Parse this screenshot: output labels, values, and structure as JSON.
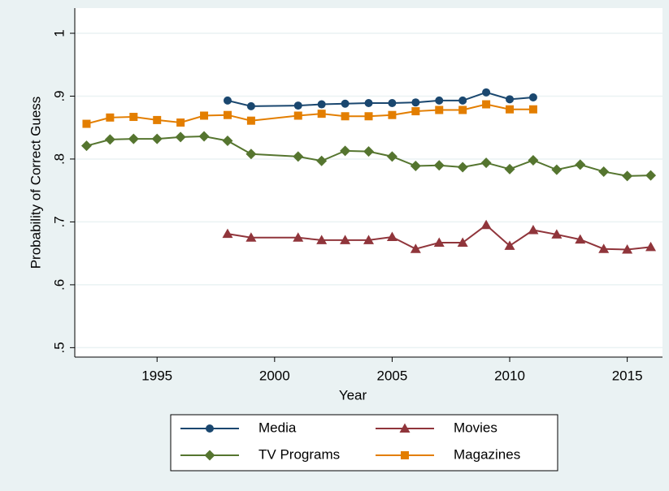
{
  "chart_data": {
    "type": "line",
    "x_label": "Year",
    "y_label": "Probability of Correct Guess",
    "xlim": [
      1991.5,
      2016.5
    ],
    "xticks": [
      1995,
      2000,
      2005,
      2010,
      2015
    ],
    "ylim": [
      0.485,
      1.04
    ],
    "yticks": [
      {
        "value": 0.5,
        "label": ".5"
      },
      {
        "value": 0.6,
        "label": ".6"
      },
      {
        "value": 0.7,
        "label": ".7"
      },
      {
        "value": 0.8,
        "label": ".8"
      },
      {
        "value": 0.9,
        "label": ".9"
      },
      1
    ],
    "grid": true,
    "legend": "bottom",
    "series": [
      {
        "name": "Media",
        "color": "#1a476f",
        "marker": "circle",
        "x": [
          1998,
          1999,
          2001,
          2002,
          2003,
          2004,
          2005,
          2006,
          2007,
          2008,
          2009,
          2010,
          2011
        ],
        "values": [
          0.893,
          0.884,
          0.885,
          0.887,
          0.888,
          0.889,
          0.889,
          0.89,
          0.893,
          0.893,
          0.906,
          0.895,
          0.898
        ]
      },
      {
        "name": "Movies",
        "color": "#90353b",
        "marker": "triangle",
        "x": [
          1998,
          1999,
          2001,
          2002,
          2003,
          2004,
          2005,
          2006,
          2007,
          2008,
          2009,
          2010,
          2011,
          2012,
          2013,
          2014,
          2015,
          2016
        ],
        "values": [
          0.681,
          0.675,
          0.675,
          0.671,
          0.671,
          0.671,
          0.676,
          0.657,
          0.667,
          0.667,
          0.695,
          0.662,
          0.687,
          0.68,
          0.672,
          0.657,
          0.656,
          0.66
        ]
      },
      {
        "name": "TV Programs",
        "color": "#55752f",
        "marker": "diamond",
        "x": [
          1992,
          1993,
          1994,
          1995,
          1996,
          1997,
          1998,
          1999,
          2001,
          2002,
          2003,
          2004,
          2005,
          2006,
          2007,
          2008,
          2009,
          2010,
          2011,
          2012,
          2013,
          2014,
          2015,
          2016
        ],
        "values": [
          0.821,
          0.831,
          0.832,
          0.832,
          0.835,
          0.836,
          0.829,
          0.808,
          0.804,
          0.797,
          0.813,
          0.812,
          0.804,
          0.789,
          0.79,
          0.787,
          0.794,
          0.784,
          0.798,
          0.783,
          0.791,
          0.78,
          0.773,
          0.774
        ]
      },
      {
        "name": "Magazines",
        "color": "#e37e00",
        "marker": "square",
        "x": [
          1992,
          1993,
          1994,
          1995,
          1996,
          1997,
          1998,
          1999,
          2001,
          2002,
          2003,
          2004,
          2005,
          2006,
          2007,
          2008,
          2009,
          2010,
          2011
        ],
        "values": [
          0.856,
          0.866,
          0.867,
          0.862,
          0.858,
          0.869,
          0.87,
          0.861,
          0.869,
          0.872,
          0.868,
          0.868,
          0.87,
          0.876,
          0.878,
          0.878,
          0.887,
          0.879,
          0.879
        ]
      }
    ]
  }
}
